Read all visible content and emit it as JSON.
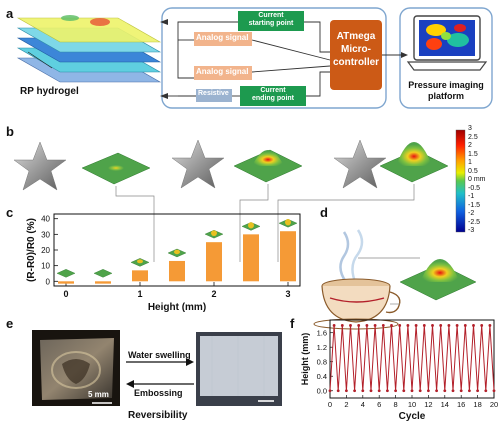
{
  "panel_a": {
    "label": "a",
    "hydrogel": "RP hydrogel",
    "analog1": "Analog signal",
    "analog2": "Analog signal",
    "resistive": "Resistive",
    "cur_start": [
      "Current",
      "starting point"
    ],
    "cur_end": [
      "Current",
      "ending point"
    ],
    "mcu": [
      "ATmega",
      "Micro-",
      "controller"
    ],
    "platform": [
      "Pressure imaging",
      "platform"
    ]
  },
  "panel_b": {
    "label": "b",
    "colorbar_ticks": [
      "3",
      "2.5",
      "2",
      "1.5",
      "1",
      "0.5",
      "0 mm",
      "-0.5",
      "-1",
      "-1.5",
      "-2",
      "-2.5",
      "-3"
    ]
  },
  "panel_c": {
    "label": "c",
    "chart_data": {
      "type": "bar",
      "x": [
        0,
        0.5,
        1,
        1.5,
        2,
        2.5,
        3
      ],
      "values": [
        -1.5,
        -1.5,
        7,
        13,
        25,
        30,
        32
      ],
      "xlabel": "Height (mm)",
      "ylabel": "(R-R0)/R0 (%)",
      "xticks": [
        "0",
        "1",
        "2",
        "3"
      ],
      "yticks": [
        "0",
        "10",
        "20",
        "30",
        "40"
      ],
      "ylim": [
        -3,
        43
      ],
      "bar_color": "#f59a36"
    }
  },
  "panel_d": {
    "label": "d"
  },
  "panel_e": {
    "label": "e",
    "scale": "5 mm",
    "water": "Water swelling",
    "emboss": "Embossing",
    "caption": "Reversibility"
  },
  "panel_f": {
    "label": "f",
    "chart_data": {
      "type": "line",
      "xlabel": "Cycle",
      "ylabel": "Height (mm)",
      "xticks": [
        "0",
        "2",
        "4",
        "6",
        "8",
        "10",
        "12",
        "14",
        "16",
        "18",
        "20"
      ],
      "yticks": [
        "0.0",
        "0.4",
        "0.8",
        "1.2",
        "1.6"
      ],
      "xlim": [
        0,
        20
      ],
      "ylim": [
        -0.2,
        1.95
      ],
      "cycles": 20,
      "high": 1.8,
      "low": 0.0,
      "color": "#b3202a"
    }
  }
}
